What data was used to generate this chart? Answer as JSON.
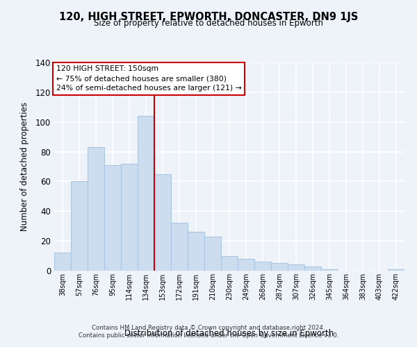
{
  "title": "120, HIGH STREET, EPWORTH, DONCASTER, DN9 1JS",
  "subtitle": "Size of property relative to detached houses in Epworth",
  "xlabel": "Distribution of detached houses by size in Epworth",
  "ylabel": "Number of detached properties",
  "bar_labels": [
    "38sqm",
    "57sqm",
    "76sqm",
    "95sqm",
    "114sqm",
    "134sqm",
    "153sqm",
    "172sqm",
    "191sqm",
    "210sqm",
    "230sqm",
    "249sqm",
    "268sqm",
    "287sqm",
    "307sqm",
    "326sqm",
    "345sqm",
    "364sqm",
    "383sqm",
    "403sqm",
    "422sqm"
  ],
  "bar_values": [
    12,
    60,
    83,
    71,
    72,
    104,
    65,
    32,
    26,
    23,
    10,
    8,
    6,
    5,
    4,
    3,
    1,
    0,
    0,
    0,
    1
  ],
  "bar_color": "#ccddf0",
  "bar_edge_color": "#adc6e0",
  "vline_x": 6.0,
  "vline_color": "#cc0000",
  "ylim": [
    0,
    140
  ],
  "yticks": [
    0,
    20,
    40,
    60,
    80,
    100,
    120,
    140
  ],
  "annotation_title": "120 HIGH STREET: 150sqm",
  "annotation_line1": "← 75% of detached houses are smaller (380)",
  "annotation_line2": "24% of semi-detached houses are larger (121) →",
  "annotation_box_color": "#ffffff",
  "annotation_box_edge": "#cc0000",
  "footer_line1": "Contains HM Land Registry data © Crown copyright and database right 2024.",
  "footer_line2": "Contains public sector information licensed under the Open Government Licence v3.0.",
  "bg_color": "#eef3fa",
  "plot_bg_color": "#eef3fa",
  "grid_color": "#ffffff"
}
